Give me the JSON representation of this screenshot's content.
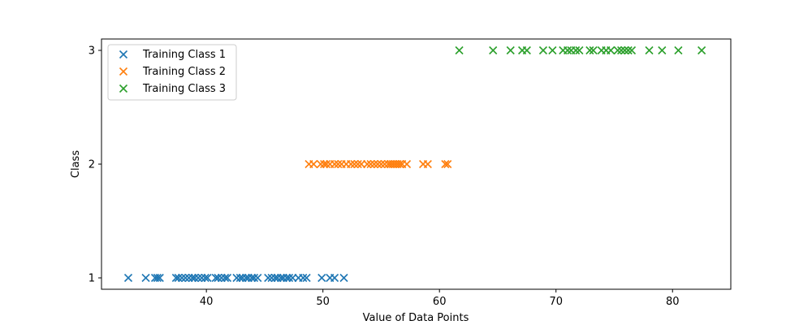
{
  "chart_data": {
    "type": "scatter",
    "title": "",
    "xlabel": "Value of Data Points",
    "ylabel": "Class",
    "xlim": [
      31,
      85
    ],
    "ylim": [
      0.9,
      3.1
    ],
    "xticks": [
      40,
      50,
      60,
      70,
      80
    ],
    "yticks": [
      1,
      2,
      3
    ],
    "grid": false,
    "legend_position": "top-left",
    "marker": "x",
    "series": [
      {
        "name": "Training Class 1",
        "color": "#1f77b4",
        "x": [
          33.3,
          34.8,
          35.6,
          35.8,
          36.0,
          37.4,
          37.6,
          37.9,
          38.2,
          38.5,
          38.8,
          39.0,
          39.3,
          39.6,
          39.9,
          40.1,
          40.8,
          41.0,
          41.3,
          41.6,
          41.8,
          42.6,
          42.9,
          43.1,
          43.4,
          43.6,
          43.9,
          44.1,
          44.4,
          45.3,
          45.6,
          45.9,
          46.1,
          46.4,
          46.6,
          46.9,
          47.1,
          47.4,
          47.9,
          48.3,
          48.6,
          49.9,
          50.6,
          51.0,
          51.8
        ],
        "y": [
          1,
          1,
          1,
          1,
          1,
          1,
          1,
          1,
          1,
          1,
          1,
          1,
          1,
          1,
          1,
          1,
          1,
          1,
          1,
          1,
          1,
          1,
          1,
          1,
          1,
          1,
          1,
          1,
          1,
          1,
          1,
          1,
          1,
          1,
          1,
          1,
          1,
          1,
          1,
          1,
          1,
          1,
          1,
          1,
          1
        ]
      },
      {
        "name": "Training Class 2",
        "color": "#ff7f0e",
        "x": [
          48.8,
          49.2,
          49.8,
          50.1,
          50.3,
          50.6,
          51.0,
          51.3,
          51.6,
          52.0,
          52.4,
          52.7,
          53.0,
          53.3,
          53.8,
          54.1,
          54.4,
          54.7,
          55.0,
          55.3,
          55.6,
          55.8,
          56.0,
          56.2,
          56.4,
          56.6,
          56.8,
          57.2,
          58.6,
          59.0,
          60.5,
          60.7
        ],
        "y": [
          2,
          2,
          2,
          2,
          2,
          2,
          2,
          2,
          2,
          2,
          2,
          2,
          2,
          2,
          2,
          2,
          2,
          2,
          2,
          2,
          2,
          2,
          2,
          2,
          2,
          2,
          2,
          2,
          2,
          2,
          2,
          2
        ]
      },
      {
        "name": "Training Class 3",
        "color": "#2ca02c",
        "x": [
          61.7,
          64.6,
          66.1,
          67.1,
          67.5,
          68.9,
          69.7,
          70.6,
          71.0,
          71.3,
          71.7,
          72.0,
          72.9,
          73.2,
          73.9,
          74.3,
          74.7,
          75.3,
          75.6,
          75.9,
          76.2,
          76.5,
          78.0,
          79.1,
          80.5,
          82.5
        ],
        "y": [
          3,
          3,
          3,
          3,
          3,
          3,
          3,
          3,
          3,
          3,
          3,
          3,
          3,
          3,
          3,
          3,
          3,
          3,
          3,
          3,
          3,
          3,
          3,
          3,
          3,
          3
        ]
      }
    ]
  }
}
